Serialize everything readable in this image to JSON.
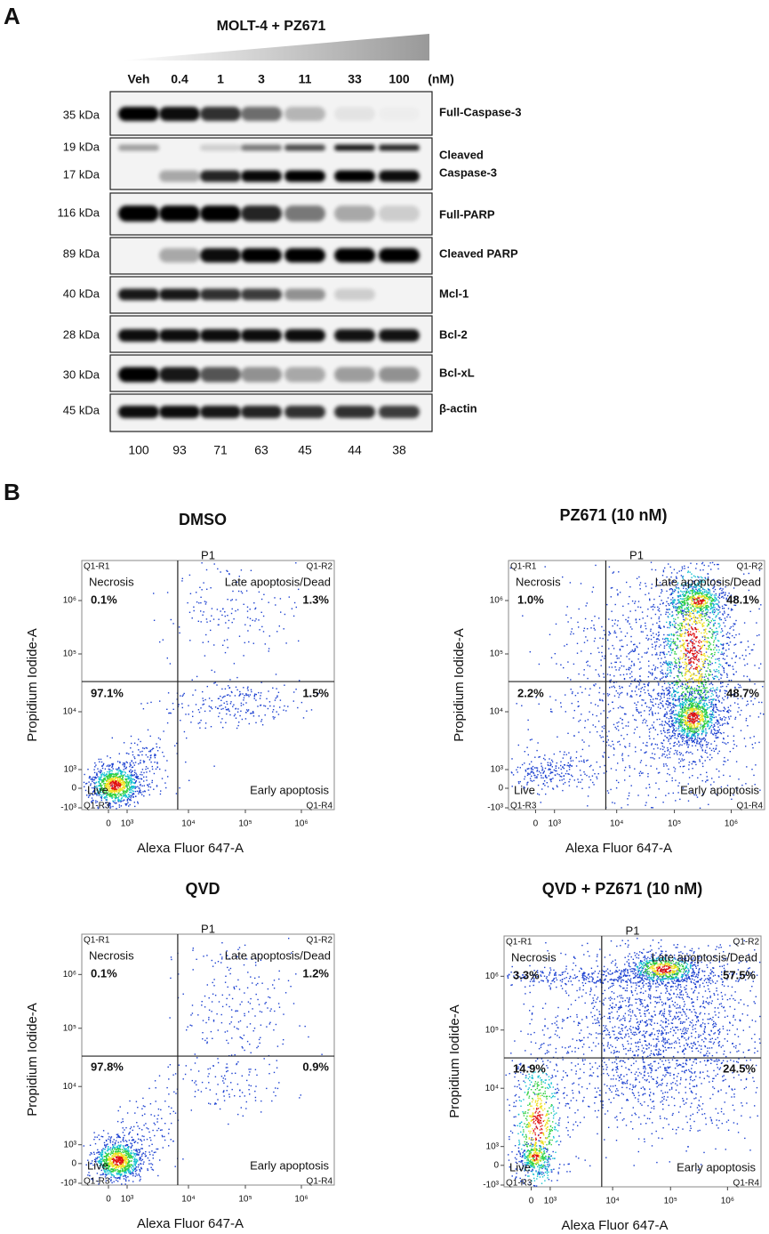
{
  "panel_a": {
    "label": "A",
    "title": "MOLT-4 + PZ671",
    "lanes": [
      "Veh",
      "0.4",
      "1",
      "3",
      "11",
      "33",
      "100"
    ],
    "unit": "(nM)",
    "blots": [
      {
        "markers": [
          "35 kDa"
        ],
        "names": [
          "Full-Caspase-3"
        ]
      },
      {
        "markers": [
          "19 kDa",
          "17 kDa"
        ],
        "names": [
          "Cleaved",
          "Caspase-3"
        ]
      },
      {
        "markers": [
          "116 kDa"
        ],
        "names": [
          "Full-PARP"
        ]
      },
      {
        "markers": [
          "89 kDa"
        ],
        "names": [
          "Cleaved PARP"
        ]
      },
      {
        "markers": [
          "40 kDa"
        ],
        "names": [
          "Mcl-1"
        ]
      },
      {
        "markers": [
          "28 kDa"
        ],
        "names": [
          "Bcl-2"
        ]
      },
      {
        "markers": [
          "30 kDa"
        ],
        "names": [
          "Bcl-xL"
        ]
      },
      {
        "markers": [
          "45 kDa"
        ],
        "names": [
          "β-actin"
        ]
      }
    ],
    "quantification": [
      100,
      93,
      71,
      63,
      45,
      44,
      38
    ]
  },
  "panel_b": {
    "label": "B",
    "plots": [
      {
        "title": "DMSO",
        "gate": "P1",
        "quadrant_ids": [
          "Q1-R1",
          "Q1-R2",
          "Q1-R3",
          "Q1-R4"
        ],
        "quadrant_names": [
          "Necrosis",
          "Late apoptosis/Dead",
          "Live",
          "Early apoptosis"
        ],
        "percentages": [
          "0.1%",
          "1.3%",
          "97.1%",
          "1.5%"
        ],
        "y_label": "Propidium Iodide-A",
        "x_label": "Alexa Fluor 647-A",
        "y_ticks": [
          "10⁶",
          "10⁵",
          "10⁴",
          "10³",
          "0",
          "-10³"
        ],
        "x_ticks": [
          "0",
          "10³",
          "10⁴",
          "10⁵",
          "10⁶"
        ]
      },
      {
        "title": "PZ671 (10 nM)",
        "gate": "P1",
        "quadrant_ids": [
          "Q1-R1",
          "Q1-R2",
          "Q1-R3",
          "Q1-R4"
        ],
        "quadrant_names": [
          "Necrosis",
          "Late apoptosis/Dead",
          "Live",
          "Early apoptosis"
        ],
        "percentages": [
          "1.0%",
          "48.1%",
          "2.2%",
          "48.7%"
        ],
        "y_label": "Propidium Iodide-A",
        "x_label": "Alexa Fluor 647-A",
        "y_ticks": [
          "10⁶",
          "10⁵",
          "10⁴",
          "10³",
          "0",
          "-10³"
        ],
        "x_ticks": [
          "0",
          "10³",
          "10⁴",
          "10⁵",
          "10⁶"
        ]
      },
      {
        "title": "QVD",
        "gate": "P1",
        "quadrant_ids": [
          "Q1-R1",
          "Q1-R2",
          "Q1-R3",
          "Q1-R4"
        ],
        "quadrant_names": [
          "Necrosis",
          "Late apoptosis/Dead",
          "Live",
          "Early apoptosis"
        ],
        "percentages": [
          "0.1%",
          "1.2%",
          "97.8%",
          "0.9%"
        ],
        "y_label": "Propidium Iodide-A",
        "x_label": "Alexa Fluor 647-A",
        "y_ticks": [
          "10⁶",
          "10⁵",
          "10⁴",
          "10³",
          "0",
          "-10³"
        ],
        "x_ticks": [
          "0",
          "10³",
          "10⁴",
          "10⁵",
          "10⁶"
        ]
      },
      {
        "title": "QVD + PZ671 (10 nM)",
        "gate": "P1",
        "quadrant_ids": [
          "Q1-R1",
          "Q1-R2",
          "Q1-R3",
          "Q1-R4"
        ],
        "quadrant_names": [
          "Necrosis",
          "Late apoptosis/Dead",
          "Live",
          "Early apoptosis"
        ],
        "percentages": [
          "3.3%",
          "57.5%",
          "14.9%",
          "24.5%"
        ],
        "y_label": "Propidium Iodide-A",
        "x_label": "Alexa Fluor 647-A",
        "y_ticks": [
          "10⁶",
          "10⁵",
          "10⁴",
          "10³",
          "0",
          "-10³"
        ],
        "x_ticks": [
          "0",
          "10³",
          "10⁴",
          "10⁵",
          "10⁶"
        ]
      }
    ]
  }
}
